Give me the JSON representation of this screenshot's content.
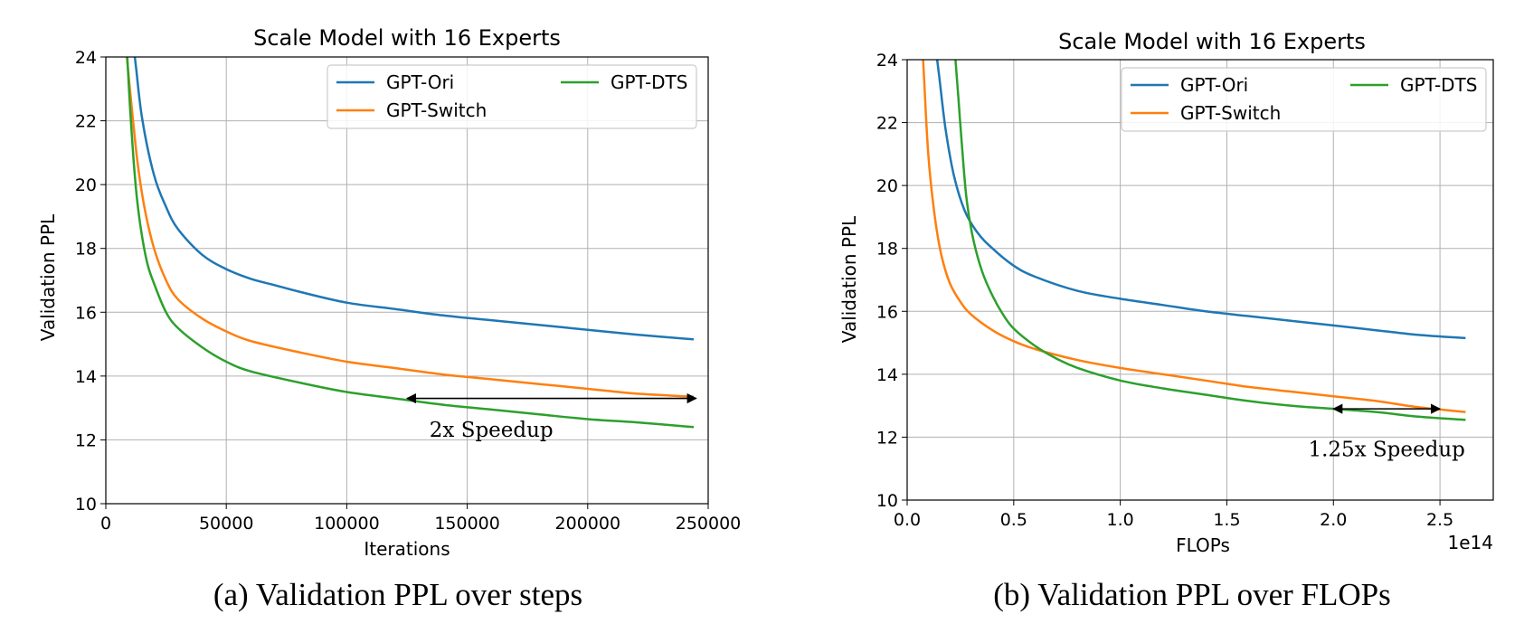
{
  "chart_data": [
    {
      "type": "line",
      "title": "Scale Model with 16 Experts",
      "xlabel": "Iterations",
      "ylabel": "Validation PPL",
      "xlim": [
        0,
        250000
      ],
      "ylim": [
        10,
        24
      ],
      "xticks": [
        0,
        50000,
        100000,
        150000,
        200000,
        250000
      ],
      "xtick_labels": [
        "0",
        "50000",
        "100000",
        "150000",
        "200000",
        "250000"
      ],
      "yticks": [
        10,
        12,
        14,
        16,
        18,
        20,
        22,
        24
      ],
      "ytick_labels": [
        "10",
        "12",
        "14",
        "16",
        "18",
        "20",
        "22",
        "24"
      ],
      "x_offset_label": "",
      "grid": true,
      "legend_placement": "upper-right",
      "legend": [
        "GPT-Ori",
        "GPT-Switch",
        "GPT-DTS"
      ],
      "caption": "(a) Validation PPL over steps",
      "series": [
        {
          "name": "GPT-Ori",
          "color": "#1f77b4",
          "x": [
            10000,
            12000,
            15000,
            20000,
            25000,
            30000,
            40000,
            50000,
            60000,
            70000,
            80000,
            100000,
            120000,
            140000,
            160000,
            180000,
            200000,
            220000,
            244000
          ],
          "y": [
            24.6,
            24.0,
            22.1,
            20.3,
            19.3,
            18.6,
            17.8,
            17.35,
            17.05,
            16.85,
            16.65,
            16.3,
            16.1,
            15.9,
            15.75,
            15.6,
            15.45,
            15.3,
            15.15
          ]
        },
        {
          "name": "GPT-Switch",
          "color": "#ff7f0e",
          "x": [
            8000,
            10000,
            13000,
            16000,
            20000,
            25000,
            30000,
            40000,
            50000,
            60000,
            80000,
            100000,
            120000,
            140000,
            160000,
            180000,
            200000,
            220000,
            244000
          ],
          "y": [
            24.6,
            23.0,
            20.8,
            19.3,
            18.0,
            17.0,
            16.4,
            15.8,
            15.4,
            15.1,
            14.75,
            14.45,
            14.25,
            14.05,
            13.9,
            13.75,
            13.6,
            13.45,
            13.35
          ]
        },
        {
          "name": "GPT-DTS",
          "color": "#2ca02c",
          "x": [
            8500,
            10000,
            12000,
            14000,
            17000,
            20000,
            25000,
            30000,
            40000,
            50000,
            60000,
            80000,
            100000,
            120000,
            140000,
            160000,
            180000,
            200000,
            220000,
            244000
          ],
          "y": [
            24.6,
            22.5,
            20.3,
            18.9,
            17.6,
            16.9,
            16.0,
            15.5,
            14.9,
            14.45,
            14.15,
            13.8,
            13.5,
            13.3,
            13.1,
            12.95,
            12.8,
            12.65,
            12.55,
            12.4
          ]
        }
      ],
      "annotation": {
        "text": "2x Speedup",
        "arrow_x": [
          125000,
          245000
        ],
        "arrow_y": 13.3,
        "text_x": 160000,
        "text_y": 12.1
      }
    },
    {
      "type": "line",
      "title": "Scale Model with 16 Experts",
      "xlabel": "FLOPs",
      "ylabel": "Validation PPL",
      "xlim": [
        0,
        2.75
      ],
      "ylim": [
        10,
        24
      ],
      "xticks": [
        0.0,
        0.5,
        1.0,
        1.5,
        2.0,
        2.5
      ],
      "xtick_labels": [
        "0.0",
        "0.5",
        "1.0",
        "1.5",
        "2.0",
        "2.5"
      ],
      "yticks": [
        10,
        12,
        14,
        16,
        18,
        20,
        22,
        24
      ],
      "ytick_labels": [
        "10",
        "12",
        "14",
        "16",
        "18",
        "20",
        "22",
        "24"
      ],
      "x_offset_label": "1e14",
      "grid": true,
      "legend_placement": "upper-right",
      "legend": [
        "GPT-Ori",
        "GPT-Switch",
        "GPT-DTS"
      ],
      "caption": "(b) Validation PPL over FLOPs",
      "series": [
        {
          "name": "GPT-Ori",
          "color": "#1f77b4",
          "x": [
            0.13,
            0.15,
            0.18,
            0.22,
            0.27,
            0.33,
            0.4,
            0.5,
            0.6,
            0.8,
            1.0,
            1.2,
            1.4,
            1.6,
            1.8,
            2.0,
            2.2,
            2.4,
            2.62
          ],
          "y": [
            24.6,
            23.5,
            21.8,
            20.3,
            19.2,
            18.5,
            18.0,
            17.45,
            17.1,
            16.65,
            16.4,
            16.2,
            16.0,
            15.85,
            15.7,
            15.55,
            15.4,
            15.25,
            15.15
          ]
        },
        {
          "name": "GPT-Switch",
          "color": "#ff7f0e",
          "x": [
            0.07,
            0.08,
            0.1,
            0.13,
            0.16,
            0.2,
            0.25,
            0.3,
            0.4,
            0.5,
            0.6,
            0.8,
            1.0,
            1.2,
            1.4,
            1.6,
            1.8,
            2.0,
            2.2,
            2.4,
            2.62
          ],
          "y": [
            24.6,
            23.3,
            20.9,
            19.0,
            17.8,
            16.9,
            16.3,
            15.9,
            15.4,
            15.05,
            14.8,
            14.45,
            14.2,
            14.0,
            13.8,
            13.6,
            13.45,
            13.3,
            13.15,
            12.95,
            12.8
          ]
        },
        {
          "name": "GPT-DTS",
          "color": "#2ca02c",
          "x": [
            0.22,
            0.24,
            0.26,
            0.28,
            0.31,
            0.35,
            0.4,
            0.45,
            0.5,
            0.6,
            0.7,
            0.8,
            1.0,
            1.2,
            1.4,
            1.6,
            1.8,
            2.0,
            2.2,
            2.4,
            2.62
          ],
          "y": [
            24.6,
            22.8,
            21.0,
            19.5,
            18.3,
            17.3,
            16.5,
            15.9,
            15.45,
            14.9,
            14.5,
            14.2,
            13.8,
            13.55,
            13.35,
            13.15,
            13.0,
            12.9,
            12.8,
            12.65,
            12.55
          ]
        }
      ],
      "annotation": {
        "text": "1.25x Speedup",
        "arrow_x": [
          2.0,
          2.5
        ],
        "arrow_y": 12.9,
        "text_x": 2.25,
        "text_y": 11.4
      }
    }
  ]
}
